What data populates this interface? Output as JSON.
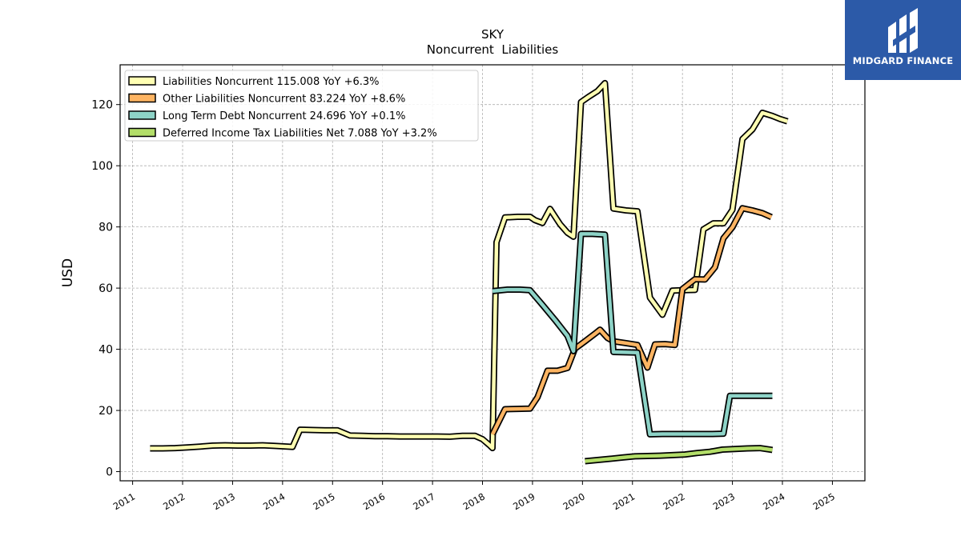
{
  "chart_data": {
    "type": "line",
    "title": "SKY",
    "subtitle": "Noncurrent  Liabilities",
    "xlabel": "",
    "ylabel": "USD",
    "xlim": [
      2010.75,
      2025.65
    ],
    "ylim": [
      -3,
      133
    ],
    "x_ticks": [
      "2011",
      "2012",
      "2013",
      "2014",
      "2015",
      "2016",
      "2017",
      "2018",
      "2019",
      "2020",
      "2021",
      "2022",
      "2023",
      "2024",
      "2025"
    ],
    "y_ticks": [
      0,
      20,
      40,
      60,
      80,
      100,
      120
    ],
    "grid": true,
    "legend_position": "top-left",
    "series": [
      {
        "name": "Liabilities Noncurrent  115.008 YoY +6.3%",
        "color": "#ffffb3",
        "points": [
          [
            2011.35,
            7.6
          ],
          [
            2011.6,
            7.6
          ],
          [
            2011.85,
            7.7
          ],
          [
            2012.1,
            7.9
          ],
          [
            2012.35,
            8.2
          ],
          [
            2012.6,
            8.5
          ],
          [
            2012.85,
            8.6
          ],
          [
            2013.1,
            8.5
          ],
          [
            2013.35,
            8.5
          ],
          [
            2013.6,
            8.6
          ],
          [
            2013.85,
            8.4
          ],
          [
            2014.1,
            8.2
          ],
          [
            2014.2,
            8.1
          ],
          [
            2014.35,
            13.7
          ],
          [
            2014.6,
            13.6
          ],
          [
            2014.85,
            13.5
          ],
          [
            2015.1,
            13.5
          ],
          [
            2015.35,
            11.8
          ],
          [
            2015.6,
            11.7
          ],
          [
            2015.85,
            11.6
          ],
          [
            2016.1,
            11.6
          ],
          [
            2016.35,
            11.5
          ],
          [
            2016.6,
            11.5
          ],
          [
            2016.85,
            11.5
          ],
          [
            2017.1,
            11.5
          ],
          [
            2017.35,
            11.4
          ],
          [
            2017.6,
            11.7
          ],
          [
            2017.85,
            11.7
          ],
          [
            2018.0,
            10.6
          ],
          [
            2018.13,
            8.8
          ],
          [
            2018.2,
            7.7
          ],
          [
            2018.28,
            75
          ],
          [
            2018.45,
            83.1
          ],
          [
            2018.7,
            83.3
          ],
          [
            2018.95,
            83.3
          ],
          [
            2019.05,
            82.2
          ],
          [
            2019.2,
            81.3
          ],
          [
            2019.35,
            85.9
          ],
          [
            2019.55,
            80.9
          ],
          [
            2019.7,
            78.1
          ],
          [
            2019.82,
            76.8
          ],
          [
            2019.97,
            120.8
          ],
          [
            2020.12,
            122.5
          ],
          [
            2020.3,
            124.4
          ],
          [
            2020.45,
            127
          ],
          [
            2020.62,
            86
          ],
          [
            2020.87,
            85.4
          ],
          [
            2021.1,
            85.1
          ],
          [
            2021.35,
            56.9
          ],
          [
            2021.6,
            51.3
          ],
          [
            2021.8,
            59.2
          ],
          [
            2022.0,
            59.3
          ],
          [
            2022.25,
            59.4
          ],
          [
            2022.42,
            79.2
          ],
          [
            2022.62,
            81.2
          ],
          [
            2022.82,
            81.2
          ],
          [
            2023.0,
            85.6
          ],
          [
            2023.2,
            108.7
          ],
          [
            2023.4,
            111.9
          ],
          [
            2023.6,
            117.3
          ],
          [
            2023.8,
            116.3
          ],
          [
            2023.95,
            115.3
          ],
          [
            2024.1,
            114.5
          ]
        ]
      },
      {
        "name": "Other Liabilities Noncurrent  83.224 YoY +8.6%",
        "color": "#fdb462",
        "points": [
          [
            2018.2,
            12.2
          ],
          [
            2018.45,
            20.4
          ],
          [
            2018.7,
            20.5
          ],
          [
            2018.95,
            20.6
          ],
          [
            2019.1,
            24.3
          ],
          [
            2019.3,
            33.0
          ],
          [
            2019.5,
            33.0
          ],
          [
            2019.7,
            33.9
          ],
          [
            2019.85,
            40.2
          ],
          [
            2020.05,
            42.6
          ],
          [
            2020.25,
            45.1
          ],
          [
            2020.35,
            46.4
          ],
          [
            2020.5,
            43.7
          ],
          [
            2020.62,
            42.6
          ],
          [
            2020.87,
            42.0
          ],
          [
            2021.1,
            41.4
          ],
          [
            2021.3,
            34.0
          ],
          [
            2021.45,
            41.6
          ],
          [
            2021.65,
            41.7
          ],
          [
            2021.85,
            41.4
          ],
          [
            2022.0,
            59.7
          ],
          [
            2022.25,
            62.9
          ],
          [
            2022.45,
            62.8
          ],
          [
            2022.65,
            66.8
          ],
          [
            2022.82,
            76.3
          ],
          [
            2023.0,
            79.9
          ],
          [
            2023.2,
            86.1
          ],
          [
            2023.4,
            85.4
          ],
          [
            2023.6,
            84.5
          ],
          [
            2023.78,
            83.2
          ]
        ]
      },
      {
        "name": "Long Term Debt Noncurrent  24.696 YoY +0.1%",
        "color": "#8dd3c7",
        "points": [
          [
            2018.2,
            59.0
          ],
          [
            2018.5,
            59.5
          ],
          [
            2018.75,
            59.5
          ],
          [
            2018.95,
            59.3
          ],
          [
            2019.2,
            54.5
          ],
          [
            2019.45,
            49.6
          ],
          [
            2019.7,
            44.4
          ],
          [
            2019.82,
            39.4
          ],
          [
            2019.97,
            77.7
          ],
          [
            2020.2,
            77.7
          ],
          [
            2020.45,
            77.5
          ],
          [
            2020.62,
            39.1
          ],
          [
            2020.87,
            39.0
          ],
          [
            2021.1,
            38.9
          ],
          [
            2021.35,
            12.2
          ],
          [
            2021.6,
            12.3
          ],
          [
            2021.85,
            12.3
          ],
          [
            2022.1,
            12.3
          ],
          [
            2022.35,
            12.3
          ],
          [
            2022.6,
            12.3
          ],
          [
            2022.82,
            12.4
          ],
          [
            2022.95,
            24.8
          ],
          [
            2023.2,
            24.8
          ],
          [
            2023.45,
            24.8
          ],
          [
            2023.65,
            24.8
          ],
          [
            2023.8,
            24.8
          ]
        ]
      },
      {
        "name": "Deferred Income Tax Liabilities Net  7.088 YoY +3.2%",
        "color": "#b3de69",
        "points": [
          [
            2020.05,
            3.4
          ],
          [
            2020.3,
            3.8
          ],
          [
            2020.55,
            4.2
          ],
          [
            2020.8,
            4.6
          ],
          [
            2021.05,
            5.0
          ],
          [
            2021.3,
            5.1
          ],
          [
            2021.55,
            5.2
          ],
          [
            2021.8,
            5.4
          ],
          [
            2022.05,
            5.6
          ],
          [
            2022.3,
            6.1
          ],
          [
            2022.55,
            6.5
          ],
          [
            2022.8,
            7.2
          ],
          [
            2023.05,
            7.4
          ],
          [
            2023.3,
            7.6
          ],
          [
            2023.55,
            7.7
          ],
          [
            2023.8,
            7.1
          ]
        ]
      }
    ]
  },
  "logo": {
    "text": "MIDGARD FINANCE"
  }
}
